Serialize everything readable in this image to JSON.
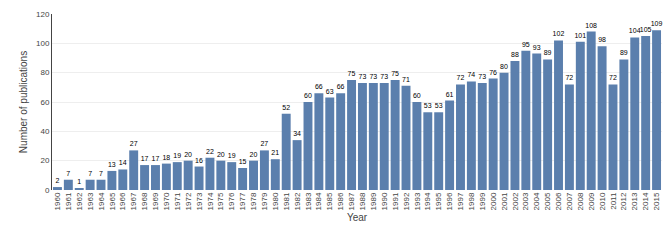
{
  "chart_data": {
    "type": "bar",
    "xlabel": "Year",
    "ylabel": "Number of publications",
    "categories": [
      "1960",
      "1961",
      "1962",
      "1963",
      "1964",
      "1965",
      "1966",
      "1967",
      "1968",
      "1969",
      "1970",
      "1971",
      "1972",
      "1973",
      "1974",
      "1975",
      "1976",
      "1977",
      "1978",
      "1979",
      "1980",
      "1981",
      "1982",
      "1983",
      "1984",
      "1985",
      "1986",
      "1987",
      "1988",
      "1989",
      "1990",
      "1991",
      "1992",
      "1993",
      "1994",
      "1995",
      "1996",
      "1997",
      "1998",
      "1999",
      "2000",
      "2001",
      "2002",
      "2003",
      "2004",
      "2005",
      "2006",
      "2007",
      "2008",
      "2009",
      "2010",
      "2011",
      "2012",
      "2013",
      "2014",
      "2015"
    ],
    "values": [
      2,
      7,
      1,
      7,
      7,
      13,
      14,
      27,
      17,
      17,
      18,
      19,
      20,
      16,
      22,
      20,
      19,
      15,
      20,
      27,
      21,
      52,
      34,
      60,
      66,
      63,
      66,
      75,
      73,
      73,
      73,
      75,
      71,
      60,
      53,
      53,
      61,
      72,
      74,
      73,
      76,
      80,
      88,
      95,
      93,
      89,
      102,
      72,
      101,
      108,
      98,
      72,
      89,
      104,
      105,
      109
    ],
    "color": "#5b7fad",
    "ylim": [
      0,
      120
    ],
    "yticks": [
      0,
      20,
      40,
      60,
      80,
      100,
      120
    ],
    "grid": true,
    "data_labels": true
  }
}
